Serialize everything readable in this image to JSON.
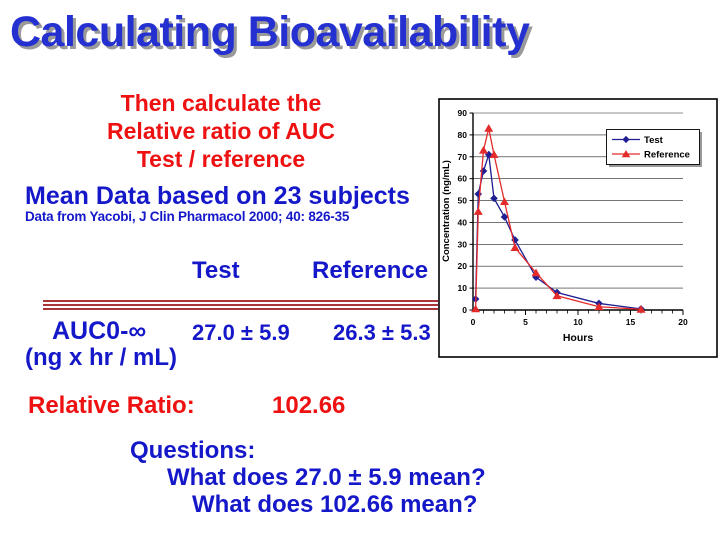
{
  "slide": {
    "title": "Calculating Bioavailability",
    "intro_lines": [
      "Then calculate the",
      "Relative ratio of AUC",
      "Test / reference"
    ],
    "subjects_heading": "Mean Data based on 23 subjects",
    "citation": "Data from Yacobi, J Clin Pharmacol 2000; 40: 826-35",
    "table": {
      "columns": [
        "Test",
        "Reference"
      ],
      "row_label": "AUC0-∞",
      "row_unit": "(ng x hr / mL)",
      "test_value": "27.0 ± 5.9",
      "reference_value": "26.3 ± 5.3"
    },
    "ratio": {
      "label": "Relative Ratio:",
      "value": "102.66"
    },
    "questions": {
      "label": "Questions:",
      "items": [
        "What does 27.0 ± 5.9 mean?",
        "What does 102.66 mean?"
      ]
    }
  },
  "colors": {
    "title_blue": "#2430d0",
    "body_blue": "#1518c9",
    "accent_red": "#ee1111",
    "divider_red": "#a93636",
    "test_series": "#1f1f93",
    "reference_series": "#e32b2b"
  },
  "chart_data": {
    "type": "line",
    "title": "",
    "xlabel": "Hours",
    "ylabel": "Concentration (ng/mL)",
    "xlim": [
      0,
      20
    ],
    "ylim": [
      0,
      90
    ],
    "x_ticks": [
      0,
      5,
      10,
      15,
      20
    ],
    "y_ticks": [
      0,
      10,
      20,
      30,
      40,
      50,
      60,
      70,
      80,
      90
    ],
    "grid": "horizontal",
    "legend_position": "upper right",
    "x": [
      0.25,
      0.5,
      1,
      1.5,
      2,
      3,
      4,
      6,
      8,
      12,
      16
    ],
    "series": [
      {
        "name": "Test",
        "marker": "diamond",
        "color": "#1f1f93",
        "values": [
          5,
          53,
          63.5,
          71,
          51,
          42.5,
          32,
          15,
          8,
          3,
          0.5
        ]
      },
      {
        "name": "Reference",
        "marker": "triangle",
        "color": "#e32b2b",
        "values": [
          0.5,
          45,
          73,
          83,
          71,
          49.5,
          28.5,
          17,
          6.5,
          1.5,
          0.3
        ]
      }
    ]
  }
}
